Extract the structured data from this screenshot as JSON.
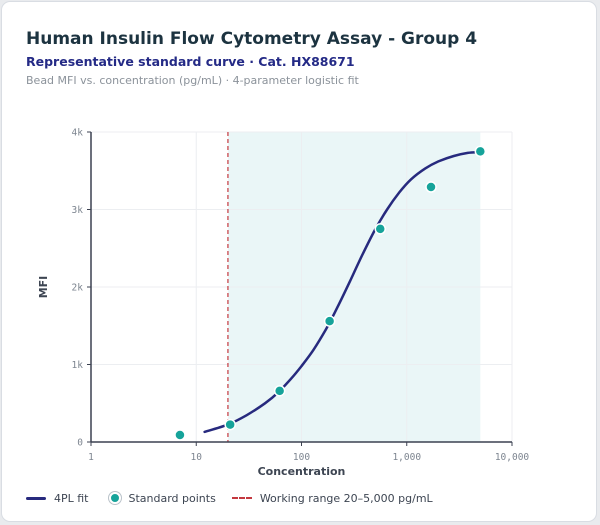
{
  "header": {
    "title": "Human Insulin Flow Cytometry Assay - Group 4",
    "subtitle": "Representative standard curve · Cat. HX88671",
    "caption": "Bead MFI vs. concentration (pg/mL) · 4-parameter logistic fit"
  },
  "legend": {
    "fit_label": "4PL fit",
    "points_label": "Standard points",
    "range_label": "Working range 20–5,000 pg/mL"
  },
  "colors": {
    "fit": "#272a7e",
    "points": "#16a39a",
    "range_line": "#c4383f",
    "range_fill": "#eaf6f7",
    "grid": "#eceef1",
    "axis": "#3b4150"
  },
  "chart_data": {
    "type": "scatter",
    "title": "Human Insulin Flow Cytometry Assay - Group 4",
    "xlabel": "Concentration",
    "ylabel": "MFI",
    "xscale": "log",
    "xlim": [
      1,
      10000
    ],
    "ylim": [
      0,
      4000
    ],
    "x_ticks": [
      1,
      10,
      100,
      1000,
      10000
    ],
    "x_tick_labels": [
      "1",
      "10",
      "100",
      "1,000",
      "10,000"
    ],
    "y_ticks": [
      0,
      1000,
      2000,
      3000,
      4000
    ],
    "y_tick_labels": [
      "0",
      "1k",
      "2k",
      "3k",
      "4k"
    ],
    "grid": true,
    "legend_position": "bottom",
    "working_range": [
      20,
      5000
    ],
    "series": [
      {
        "name": "4PL fit",
        "kind": "line",
        "x": [
          12,
          20,
          30,
          45,
          60,
          80,
          100,
          130,
          170,
          220,
          290,
          380,
          500,
          650,
          850,
          1100,
          1500,
          2000,
          2800,
          3800,
          5000
        ],
        "y": [
          130,
          225,
          345,
          500,
          640,
          820,
          980,
          1190,
          1450,
          1740,
          2080,
          2420,
          2740,
          3000,
          3220,
          3390,
          3530,
          3620,
          3690,
          3730,
          3740
        ]
      },
      {
        "name": "Standard points",
        "kind": "scatter",
        "x": [
          7,
          21,
          62,
          185,
          560,
          1700,
          5000
        ],
        "y": [
          90,
          225,
          660,
          1560,
          2750,
          3290,
          3750
        ]
      }
    ]
  }
}
